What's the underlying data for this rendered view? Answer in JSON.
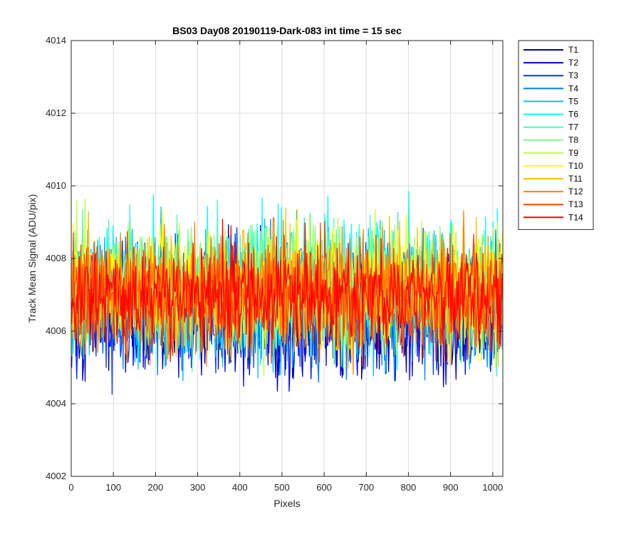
{
  "chart_data": {
    "type": "line",
    "title": "BS03 Day08 20190119-Dark-083 int time = 15 sec",
    "xlabel": "Pixels",
    "ylabel": "Track Mean Signal (ADU/pix)",
    "xlim": [
      0,
      1024
    ],
    "ylim": [
      4002,
      4014
    ],
    "xticks": [
      0,
      100,
      200,
      300,
      400,
      500,
      600,
      700,
      800,
      900,
      1000
    ],
    "yticks": [
      4002,
      4004,
      4006,
      4008,
      4010,
      4012,
      4014
    ],
    "grid": true,
    "legend_position": "outside-top-right",
    "series": [
      {
        "name": "T1",
        "color": "#0000B2",
        "center": 4006.5,
        "spread": 1.5
      },
      {
        "name": "T2",
        "color": "#0000E6",
        "center": 4006.5,
        "spread": 1.5
      },
      {
        "name": "T3",
        "color": "#0033FF",
        "center": 4006.6,
        "spread": 1.5
      },
      {
        "name": "T4",
        "color": "#0080FF",
        "center": 4006.7,
        "spread": 1.5
      },
      {
        "name": "T5",
        "color": "#00BFFF",
        "center": 4007.0,
        "spread": 1.6
      },
      {
        "name": "T6",
        "color": "#00FFFF",
        "center": 4007.3,
        "spread": 1.6
      },
      {
        "name": "T7",
        "color": "#40FFC0",
        "center": 4007.3,
        "spread": 1.5
      },
      {
        "name": "T8",
        "color": "#80FF80",
        "center": 4007.2,
        "spread": 1.5
      },
      {
        "name": "T9",
        "color": "#BFFF40",
        "center": 4007.2,
        "spread": 1.5
      },
      {
        "name": "T10",
        "color": "#FFFF00",
        "center": 4007.2,
        "spread": 1.5
      },
      {
        "name": "T11",
        "color": "#FFC000",
        "center": 4007.1,
        "spread": 1.5
      },
      {
        "name": "T12",
        "color": "#FF8000",
        "center": 4007.0,
        "spread": 1.5
      },
      {
        "name": "T13",
        "color": "#FF4000",
        "center": 4007.0,
        "spread": 1.4
      },
      {
        "name": "T14",
        "color": "#FF0000",
        "center": 4007.0,
        "spread": 1.2
      }
    ]
  }
}
